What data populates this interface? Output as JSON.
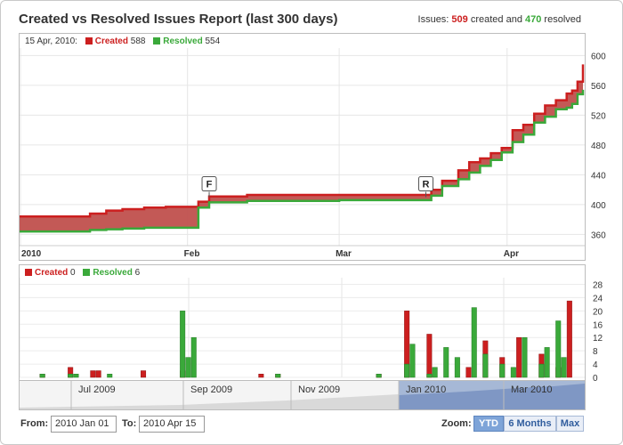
{
  "report": {
    "title": "Created vs Resolved Issues Report (last 300 days)",
    "summary": {
      "prefix": "Issues: ",
      "created": "509",
      "middle": " created and ",
      "resolved": "470",
      "suffix": " resolved"
    }
  },
  "top_legend": {
    "date": "15 Apr, 2010:",
    "created_label": "Created",
    "created_value": "588",
    "resolved_label": "Resolved",
    "resolved_value": "554"
  },
  "bottom_legend": {
    "created_label": "Created",
    "created_value": "0",
    "resolved_label": "Resolved",
    "resolved_value": "6"
  },
  "flags": [
    {
      "label": "F",
      "x": "2010-02-05",
      "y": 410
    },
    {
      "label": "R",
      "x": "2010-03-17",
      "y": 410
    }
  ],
  "navigator": {
    "labels": [
      "Jul 2009",
      "Sep 2009",
      "Nov 2009",
      "Jan 2010",
      "Mar 2010"
    ]
  },
  "range": {
    "from_label": "From:",
    "from_value": "2010 Jan 01",
    "to_label": "To:",
    "to_value": "2010 Apr 15"
  },
  "zoom": {
    "label": "Zoom:",
    "buttons": [
      {
        "label": "YTD",
        "active": true
      },
      {
        "label": "6 Months",
        "active": false
      },
      {
        "label": "Max",
        "active": false
      }
    ]
  },
  "colors": {
    "created": "#cc1f1f",
    "resolved": "#3aa93a",
    "area_fill": "#c0504d"
  },
  "chart_data": [
    {
      "type": "area",
      "title": "",
      "x_label_ticks": [
        "2010",
        "Feb",
        "Mar",
        "Apr"
      ],
      "ylim": [
        345,
        610
      ],
      "y_ticks": [
        360,
        400,
        440,
        480,
        520,
        560,
        600
      ],
      "grid": true,
      "legend_placement": "top-left",
      "series": [
        {
          "name": "Created",
          "x": [
            "2010-01-01",
            "2010-01-12",
            "2010-01-14",
            "2010-01-17",
            "2010-01-20",
            "2010-01-24",
            "2010-01-28",
            "2010-02-01",
            "2010-02-03",
            "2010-02-05",
            "2010-02-12",
            "2010-03-01",
            "2010-03-17",
            "2010-03-18",
            "2010-03-20",
            "2010-03-23",
            "2010-03-25",
            "2010-03-27",
            "2010-03-29",
            "2010-03-31",
            "2010-04-02",
            "2010-04-04",
            "2010-04-06",
            "2010-04-08",
            "2010-04-10",
            "2010-04-12",
            "2010-04-13",
            "2010-04-14",
            "2010-04-15"
          ],
          "values": [
            384,
            384,
            388,
            392,
            394,
            396,
            397,
            397,
            404,
            411,
            413,
            413,
            413,
            420,
            432,
            446,
            457,
            462,
            469,
            476,
            500,
            507,
            522,
            533,
            540,
            549,
            553,
            565,
            588
          ]
        },
        {
          "name": "Resolved",
          "x": [
            "2010-01-01",
            "2010-01-12",
            "2010-01-14",
            "2010-01-17",
            "2010-01-20",
            "2010-01-24",
            "2010-01-28",
            "2010-02-01",
            "2010-02-03",
            "2010-02-05",
            "2010-02-12",
            "2010-03-01",
            "2010-03-17",
            "2010-03-18",
            "2010-03-20",
            "2010-03-23",
            "2010-03-25",
            "2010-03-27",
            "2010-03-29",
            "2010-03-31",
            "2010-04-02",
            "2010-04-04",
            "2010-04-06",
            "2010-04-08",
            "2010-04-10",
            "2010-04-12",
            "2010-04-13",
            "2010-04-14",
            "2010-04-15"
          ],
          "values": [
            364,
            364,
            366,
            367,
            368,
            369,
            369,
            369,
            396,
            403,
            405,
            406,
            406,
            412,
            425,
            434,
            443,
            452,
            460,
            470,
            484,
            494,
            510,
            518,
            528,
            530,
            535,
            548,
            554
          ]
        }
      ]
    },
    {
      "type": "bar",
      "title": "",
      "ylim": [
        0,
        30
      ],
      "y_ticks": [
        0,
        4,
        8,
        12,
        16,
        20,
        24,
        28
      ],
      "grid": true,
      "legend_placement": "top-left",
      "series": [
        {
          "name": "Created",
          "x": [
            3,
            8,
            12,
            13,
            21,
            28,
            42,
            45,
            63,
            68,
            72,
            79,
            82,
            85,
            88,
            92,
            95,
            97
          ],
          "values": [
            1,
            3,
            2,
            2,
            2,
            2,
            1,
            1,
            1,
            20,
            13,
            3,
            11,
            6,
            12,
            7,
            3,
            23
          ]
        },
        {
          "name": "Resolved",
          "x": [
            3,
            8,
            9,
            15,
            28,
            29,
            30,
            45,
            63,
            68,
            69,
            72,
            73,
            75,
            77,
            80,
            82,
            85,
            87,
            89,
            92,
            93,
            95,
            96
          ],
          "values": [
            1,
            1,
            1,
            1,
            20,
            6,
            12,
            1,
            1,
            4,
            10,
            1,
            3,
            9,
            6,
            21,
            7,
            4,
            3,
            12,
            4,
            9,
            17,
            6
          ]
        }
      ]
    }
  ]
}
